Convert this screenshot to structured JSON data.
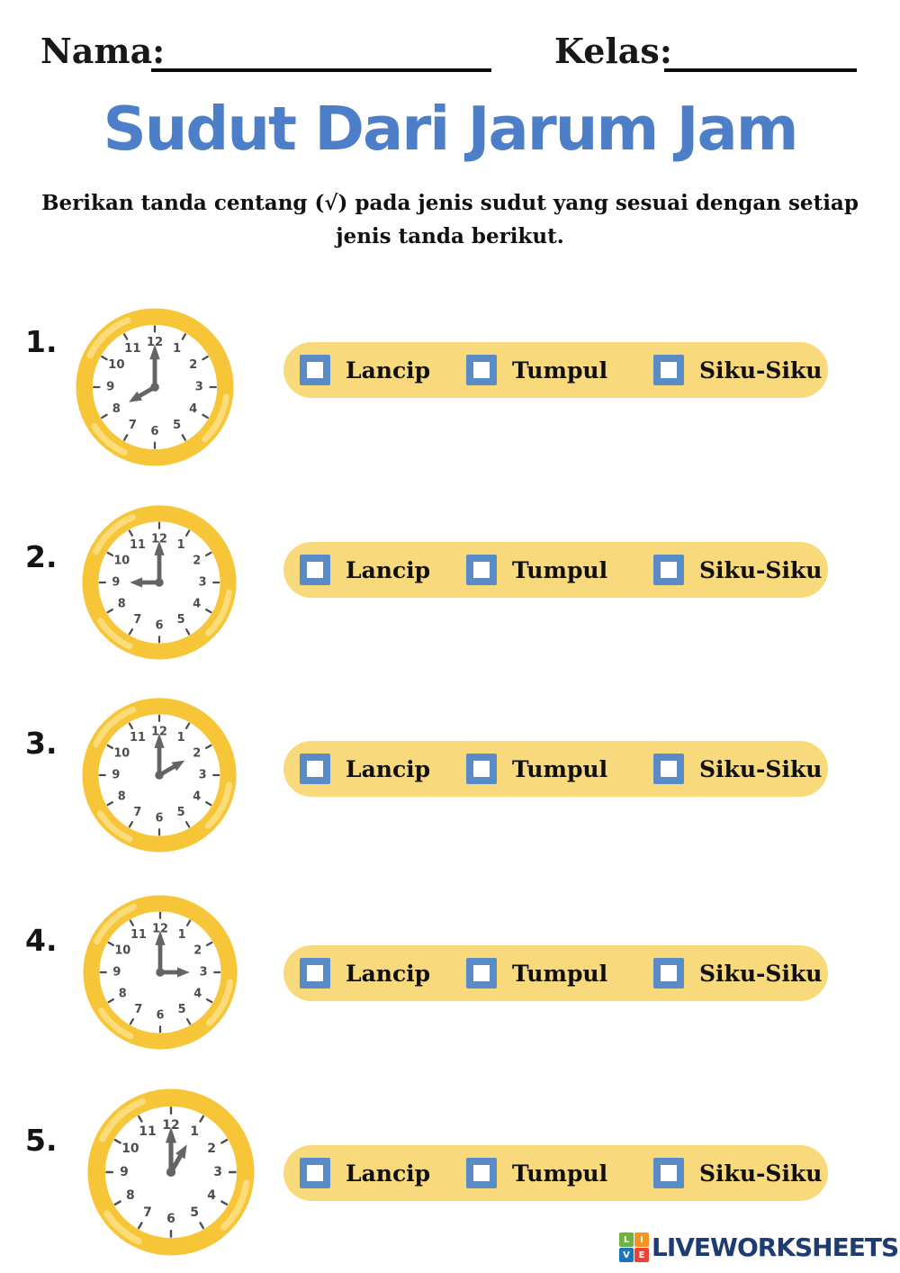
{
  "header": {
    "name_label": "Nama:",
    "class_label": "Kelas:"
  },
  "title": "Sudut Dari Jarum Jam",
  "instructions": {
    "line1": "Berikan tanda centang (√) pada jenis sudut yang sesuai dengan setiap",
    "line2": "jenis tanda berikut."
  },
  "options": [
    "Lancip",
    "Tumpul",
    "Siku-Siku"
  ],
  "questions": [
    {
      "number": "1.",
      "clock": {
        "hour": 8,
        "minute": 0
      }
    },
    {
      "number": "2.",
      "clock": {
        "hour": 9,
        "minute": 0
      }
    },
    {
      "number": "3.",
      "clock": {
        "hour": 2,
        "minute": 0
      }
    },
    {
      "number": "4.",
      "clock": {
        "hour": 3,
        "minute": 0
      }
    },
    {
      "number": "5.",
      "clock": {
        "hour": 1,
        "minute": 0
      }
    }
  ],
  "clock_labels": [
    "1",
    "2",
    "3",
    "4",
    "5",
    "6",
    "7",
    "8",
    "9",
    "10",
    "11",
    "12"
  ],
  "footer": {
    "brand": "LIVEWORKSHEETS",
    "logo_letters": [
      "L",
      "I",
      "V",
      "E"
    ]
  },
  "colors": {
    "title_blue": "#4d7ec8",
    "bar_bg": "#f8da7c",
    "cb_border": "#5b8bc7",
    "ring": "#f6c538",
    "ring_hi": "#fbdc79",
    "hand": "#646464",
    "num_gray": "#4d4d4d",
    "navy": "#1e3c72",
    "logo_l": "#6cb33f",
    "logo_i": "#f7941d",
    "logo_v": "#1b75bb",
    "logo_e": "#ef4136"
  }
}
